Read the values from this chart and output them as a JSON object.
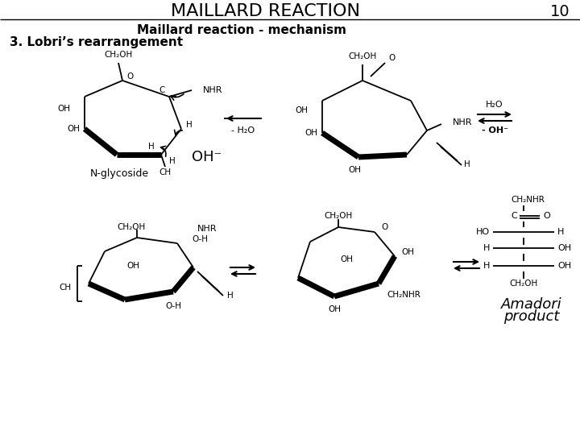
{
  "title": "MAILLARD REACTION",
  "page_num": "10",
  "subtitle": "Maillard reaction - mechanism",
  "section": "3. Lobri’s rearrangement",
  "bg_color": "#ffffff",
  "text_color": "#000000"
}
